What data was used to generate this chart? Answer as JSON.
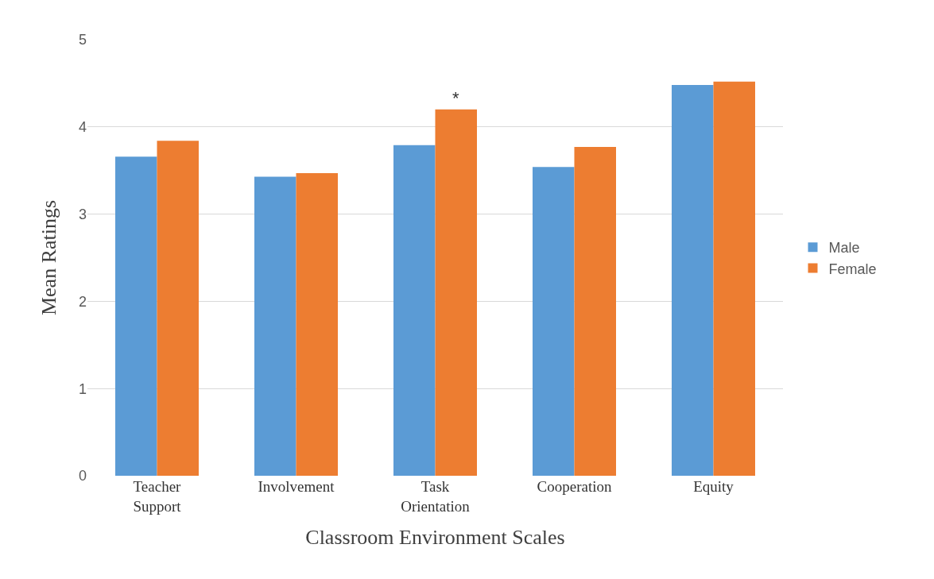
{
  "chart_data": {
    "type": "bar",
    "xlabel": "Classroom Environment Scales",
    "ylabel": "Mean Ratings",
    "categories": [
      "Teacher Support",
      "Involvement",
      "Task Orientation",
      "Cooperation",
      "Equity"
    ],
    "series": [
      {
        "name": "Male",
        "color": "#5b9bd5",
        "values": [
          3.66,
          3.43,
          3.79,
          3.54,
          4.48
        ]
      },
      {
        "name": "Female",
        "color": "#ed7d31",
        "values": [
          3.84,
          3.47,
          4.2,
          3.77,
          4.52
        ]
      }
    ],
    "ylim": [
      0,
      5
    ],
    "yticks": [
      0,
      1,
      2,
      3,
      4,
      5
    ],
    "grid": "y",
    "legend": "right",
    "annotations": [
      {
        "text": "*",
        "x": "Task Orientation",
        "y": 4.2
      }
    ]
  }
}
